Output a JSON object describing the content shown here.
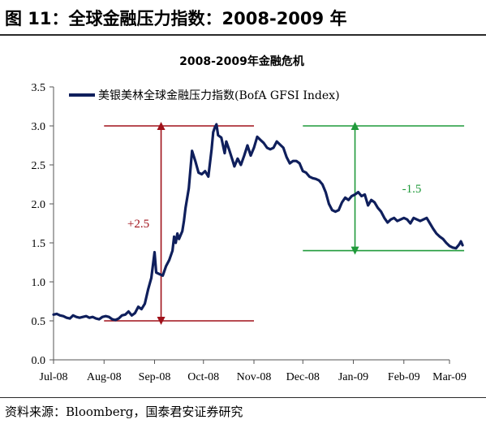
{
  "figure": {
    "title": "图 11：全球金融压力指数：2008-2009 年",
    "source": "资料来源：Bloomberg，国泰君安证券研究"
  },
  "chart_data": {
    "type": "line",
    "title": "2008-2009年金融危机",
    "xlabel": "",
    "ylabel": "",
    "ylim": [
      0,
      3.5
    ],
    "yticks": [
      "0.0",
      "0.5",
      "1.0",
      "1.5",
      "2.0",
      "2.5",
      "3.0",
      "3.5"
    ],
    "xticks": [
      "Jul-08",
      "Aug-08",
      "Sep-08",
      "Oct-08",
      "Nov-08",
      "Dec-08",
      "Jan-09",
      "Feb-09",
      "Mar-09"
    ],
    "xtick_dates": [
      "2008-07-01",
      "2008-08-01",
      "2008-09-01",
      "2008-10-01",
      "2008-11-01",
      "2008-12-01",
      "2009-01-01",
      "2009-02-01",
      "2009-03-01"
    ],
    "grid": false,
    "legend_position": "top",
    "series": [
      {
        "name": "美银美林全球金融压力指数(BofA GFSI Index)",
        "color": "#0f1f5c",
        "points": [
          [
            "2008-07-01",
            0.58
          ],
          [
            "2008-07-03",
            0.59
          ],
          [
            "2008-07-05",
            0.57
          ],
          [
            "2008-07-07",
            0.56
          ],
          [
            "2008-07-09",
            0.54
          ],
          [
            "2008-07-11",
            0.53
          ],
          [
            "2008-07-13",
            0.57
          ],
          [
            "2008-07-15",
            0.55
          ],
          [
            "2008-07-17",
            0.54
          ],
          [
            "2008-07-19",
            0.55
          ],
          [
            "2008-07-21",
            0.56
          ],
          [
            "2008-07-23",
            0.54
          ],
          [
            "2008-07-25",
            0.55
          ],
          [
            "2008-07-27",
            0.53
          ],
          [
            "2008-07-29",
            0.52
          ],
          [
            "2008-07-31",
            0.55
          ],
          [
            "2008-08-02",
            0.56
          ],
          [
            "2008-08-04",
            0.55
          ],
          [
            "2008-08-06",
            0.52
          ],
          [
            "2008-08-08",
            0.51
          ],
          [
            "2008-08-10",
            0.53
          ],
          [
            "2008-08-12",
            0.57
          ],
          [
            "2008-08-14",
            0.58
          ],
          [
            "2008-08-16",
            0.62
          ],
          [
            "2008-08-18",
            0.57
          ],
          [
            "2008-08-20",
            0.6
          ],
          [
            "2008-08-22",
            0.68
          ],
          [
            "2008-08-24",
            0.65
          ],
          [
            "2008-08-26",
            0.72
          ],
          [
            "2008-08-28",
            0.9
          ],
          [
            "2008-08-30",
            1.05
          ],
          [
            "2008-09-01",
            1.38
          ],
          [
            "2008-09-02",
            1.12
          ],
          [
            "2008-09-04",
            1.1
          ],
          [
            "2008-09-06",
            1.08
          ],
          [
            "2008-09-08",
            1.2
          ],
          [
            "2008-09-10",
            1.28
          ],
          [
            "2008-09-12",
            1.4
          ],
          [
            "2008-09-13",
            1.58
          ],
          [
            "2008-09-14",
            1.5
          ],
          [
            "2008-09-15",
            1.62
          ],
          [
            "2008-09-16",
            1.55
          ],
          [
            "2008-09-18",
            1.65
          ],
          [
            "2008-09-19",
            1.78
          ],
          [
            "2008-09-20",
            1.95
          ],
          [
            "2008-09-22",
            2.2
          ],
          [
            "2008-09-24",
            2.68
          ],
          [
            "2008-09-26",
            2.55
          ],
          [
            "2008-09-28",
            2.4
          ],
          [
            "2008-09-30",
            2.38
          ],
          [
            "2008-10-02",
            2.42
          ],
          [
            "2008-10-04",
            2.35
          ],
          [
            "2008-10-06",
            2.7
          ],
          [
            "2008-10-07",
            2.92
          ],
          [
            "2008-10-08",
            2.98
          ],
          [
            "2008-10-09",
            3.02
          ],
          [
            "2008-10-10",
            2.88
          ],
          [
            "2008-10-12",
            2.85
          ],
          [
            "2008-10-14",
            2.65
          ],
          [
            "2008-10-15",
            2.8
          ],
          [
            "2008-10-17",
            2.68
          ],
          [
            "2008-10-19",
            2.55
          ],
          [
            "2008-10-20",
            2.48
          ],
          [
            "2008-10-22",
            2.58
          ],
          [
            "2008-10-24",
            2.5
          ],
          [
            "2008-10-26",
            2.62
          ],
          [
            "2008-10-28",
            2.75
          ],
          [
            "2008-10-30",
            2.62
          ],
          [
            "2008-11-01",
            2.72
          ],
          [
            "2008-11-03",
            2.86
          ],
          [
            "2008-11-05",
            2.82
          ],
          [
            "2008-11-07",
            2.78
          ],
          [
            "2008-11-09",
            2.72
          ],
          [
            "2008-11-11",
            2.7
          ],
          [
            "2008-11-13",
            2.72
          ],
          [
            "2008-11-15",
            2.8
          ],
          [
            "2008-11-17",
            2.76
          ],
          [
            "2008-11-19",
            2.72
          ],
          [
            "2008-11-21",
            2.6
          ],
          [
            "2008-11-23",
            2.52
          ],
          [
            "2008-11-25",
            2.55
          ],
          [
            "2008-11-27",
            2.55
          ],
          [
            "2008-11-29",
            2.52
          ],
          [
            "2008-12-01",
            2.42
          ],
          [
            "2008-12-03",
            2.4
          ],
          [
            "2008-12-05",
            2.35
          ],
          [
            "2008-12-07",
            2.33
          ],
          [
            "2008-12-09",
            2.32
          ],
          [
            "2008-12-11",
            2.3
          ],
          [
            "2008-12-13",
            2.25
          ],
          [
            "2008-12-15",
            2.15
          ],
          [
            "2008-12-17",
            2.0
          ],
          [
            "2008-12-19",
            1.92
          ],
          [
            "2008-12-21",
            1.9
          ],
          [
            "2008-12-23",
            1.92
          ],
          [
            "2008-12-25",
            2.02
          ],
          [
            "2008-12-27",
            2.08
          ],
          [
            "2008-12-29",
            2.05
          ],
          [
            "2008-12-31",
            2.1
          ],
          [
            "2009-01-02",
            2.12
          ],
          [
            "2009-01-04",
            2.15
          ],
          [
            "2009-01-06",
            2.1
          ],
          [
            "2009-01-08",
            2.12
          ],
          [
            "2009-01-10",
            1.98
          ],
          [
            "2009-01-12",
            2.05
          ],
          [
            "2009-01-14",
            2.02
          ],
          [
            "2009-01-16",
            1.95
          ],
          [
            "2009-01-18",
            1.9
          ],
          [
            "2009-01-20",
            1.82
          ],
          [
            "2009-01-22",
            1.76
          ],
          [
            "2009-01-24",
            1.8
          ],
          [
            "2009-01-26",
            1.82
          ],
          [
            "2009-01-28",
            1.78
          ],
          [
            "2009-01-30",
            1.8
          ],
          [
            "2009-02-01",
            1.82
          ],
          [
            "2009-02-03",
            1.8
          ],
          [
            "2009-02-05",
            1.75
          ],
          [
            "2009-02-07",
            1.82
          ],
          [
            "2009-02-09",
            1.8
          ],
          [
            "2009-02-11",
            1.78
          ],
          [
            "2009-02-13",
            1.8
          ],
          [
            "2009-02-15",
            1.82
          ],
          [
            "2009-02-17",
            1.75
          ],
          [
            "2009-02-19",
            1.68
          ],
          [
            "2009-02-21",
            1.62
          ],
          [
            "2009-02-23",
            1.58
          ],
          [
            "2009-02-25",
            1.55
          ],
          [
            "2009-02-27",
            1.5
          ],
          [
            "2009-03-01",
            1.46
          ],
          [
            "2009-03-03",
            1.44
          ],
          [
            "2009-03-05",
            1.43
          ],
          [
            "2009-03-07",
            1.48
          ],
          [
            "2009-03-08",
            1.52
          ],
          [
            "2009-03-09",
            1.47
          ]
        ]
      }
    ],
    "annotations": [
      {
        "label": "+2.5",
        "color": "#a0111a",
        "from": 0.5,
        "to": 3.0,
        "date_start": "2008-08-01",
        "date_end": "2008-11-01",
        "arrow_date": "2008-09-05",
        "label_position": "left"
      },
      {
        "label": "-1.5",
        "color": "#1f9a3a",
        "from": 3.0,
        "to": 1.4,
        "date_start": "2008-12-01",
        "date_end": "2009-03-10",
        "arrow_date": "2009-01-02",
        "label_position": "right"
      }
    ]
  }
}
